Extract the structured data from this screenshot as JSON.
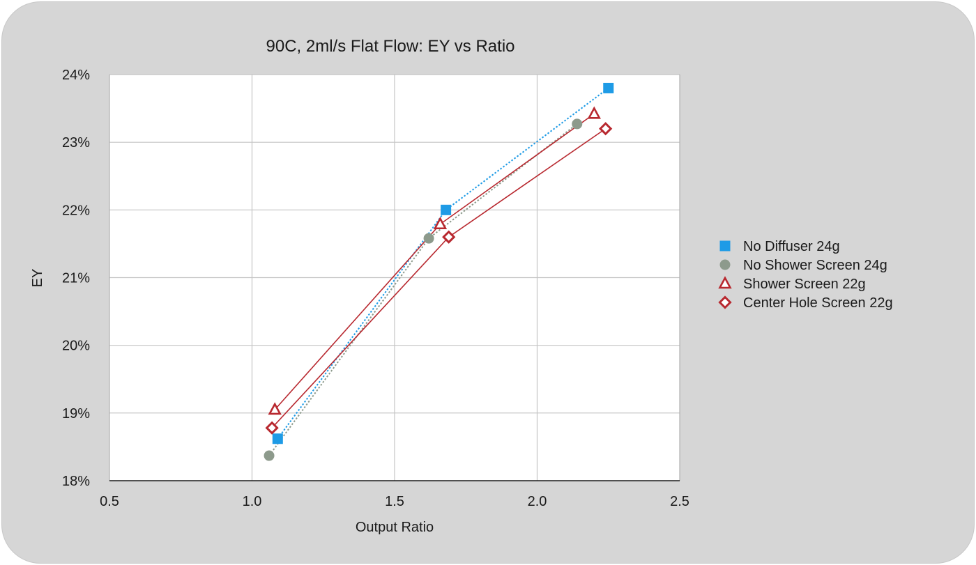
{
  "chart_data": {
    "type": "line",
    "title": "90C, 2ml/s Flat Flow: EY vs Ratio",
    "xlabel": "Output Ratio",
    "ylabel": "EY",
    "xlim": [
      0.5,
      2.5
    ],
    "ylim": [
      18,
      24
    ],
    "xticks": [
      "0.5",
      "1.0",
      "1.5",
      "2.0",
      "2.5"
    ],
    "yticks": [
      "18%",
      "19%",
      "20%",
      "21%",
      "22%",
      "23%",
      "24%"
    ],
    "grid": true,
    "legend_position": "right",
    "series": [
      {
        "name": "No Diffuser 24g",
        "marker": "square",
        "line": "dotted",
        "color": "#1e9be6",
        "x": [
          1.09,
          1.68,
          2.25
        ],
        "y": [
          18.62,
          22.0,
          23.8
        ]
      },
      {
        "name": "No Shower Screen 24g",
        "marker": "circle",
        "line": "dotted",
        "color": "#8d9a8c",
        "x": [
          1.06,
          1.62,
          2.14
        ],
        "y": [
          18.37,
          21.58,
          23.27
        ]
      },
      {
        "name": "Shower Screen 22g",
        "marker": "triangle",
        "line": "solid",
        "color": "#b8282f",
        "x": [
          1.08,
          1.66,
          2.2
        ],
        "y": [
          19.05,
          21.79,
          23.42
        ]
      },
      {
        "name": "Center Hole Screen 22g",
        "marker": "diamond",
        "line": "solid",
        "color": "#b8282f",
        "x": [
          1.07,
          1.69,
          2.24
        ],
        "y": [
          18.78,
          21.6,
          23.2
        ]
      }
    ]
  }
}
